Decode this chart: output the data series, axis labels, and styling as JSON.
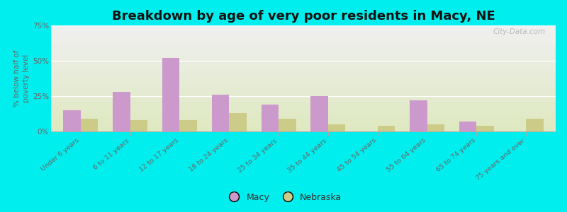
{
  "title": "Breakdown by age of very poor residents in Macy, NE",
  "ylabel": "% below half of\npoverty level",
  "categories": [
    "Under 6 years",
    "6 to 11 years",
    "12 to 17 years",
    "18 to 24 years",
    "25 to 34 years",
    "35 to 44 years",
    "45 to 54 years",
    "55 to 64 years",
    "65 to 74 years",
    "75 years and over"
  ],
  "macy_values": [
    15,
    28,
    52,
    26,
    19,
    25,
    0,
    22,
    7,
    0
  ],
  "nebraska_values": [
    9,
    8,
    8,
    13,
    9,
    5,
    4,
    5,
    4,
    9
  ],
  "macy_color": "#cc99cc",
  "nebraska_color": "#cccc88",
  "background_outer": "#00eeee",
  "background_plot_top": "#efefef",
  "background_plot_bottom": "#dde8c0",
  "ylim": [
    0,
    75
  ],
  "yticks": [
    0,
    25,
    50,
    75
  ],
  "ytick_labels": [
    "0%",
    "25%",
    "50%",
    "75%"
  ],
  "title_fontsize": 13,
  "bar_width": 0.35,
  "watermark": "City-Data.com"
}
